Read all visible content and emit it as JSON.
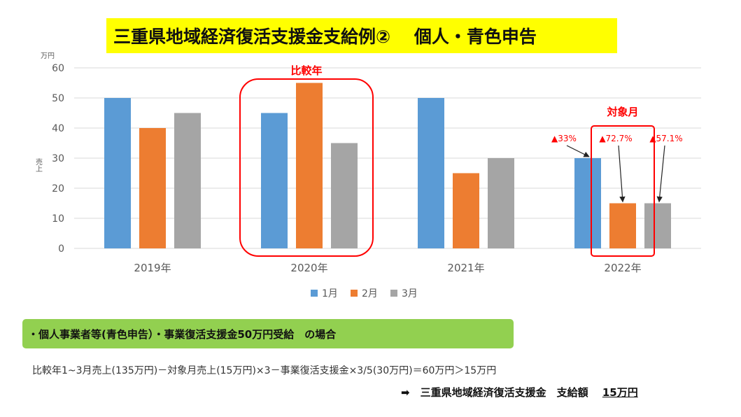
{
  "title": "三重県地域経済復活支援金支給例②　 個人・青色申告",
  "chart_data": {
    "type": "bar",
    "categories": [
      "2019年",
      "2020年",
      "2021年",
      "2022年"
    ],
    "series": [
      {
        "name": "1月",
        "color": "#5b9bd5",
        "values": [
          50,
          45,
          50,
          30
        ]
      },
      {
        "name": "2月",
        "color": "#ed7d31",
        "values": [
          40,
          55,
          25,
          15
        ]
      },
      {
        "name": "3月",
        "color": "#a5a5a5",
        "values": [
          45,
          35,
          30,
          15
        ]
      }
    ],
    "ylim": [
      0,
      60
    ],
    "yticks": [
      "0",
      "10",
      "20",
      "30",
      "40",
      "50",
      "60"
    ],
    "yunit": "万円",
    "ylabel": "売上",
    "grid": true,
    "legend_position": "bottom",
    "annotations": {
      "comparison_year_label": "比較年",
      "target_month_label": "対象月",
      "decline_rates": [
        "▲33%",
        "▲72.7%",
        "▲57.1%"
      ]
    },
    "highlight_color": "#ff0000"
  },
  "condition_text": "・個人事業者等(青色申告）・事業復活支援金50万円受給　の場合",
  "calculation_text": "比較年1~3月売上(135万円)－対象月売上(15万円)×3－事業復活支援金×3/5(30万円)＝60万円＞15万円",
  "result": {
    "arrow": "➡",
    "label": "三重県地域経済復活支援金　支給額",
    "amount": "15万円"
  }
}
